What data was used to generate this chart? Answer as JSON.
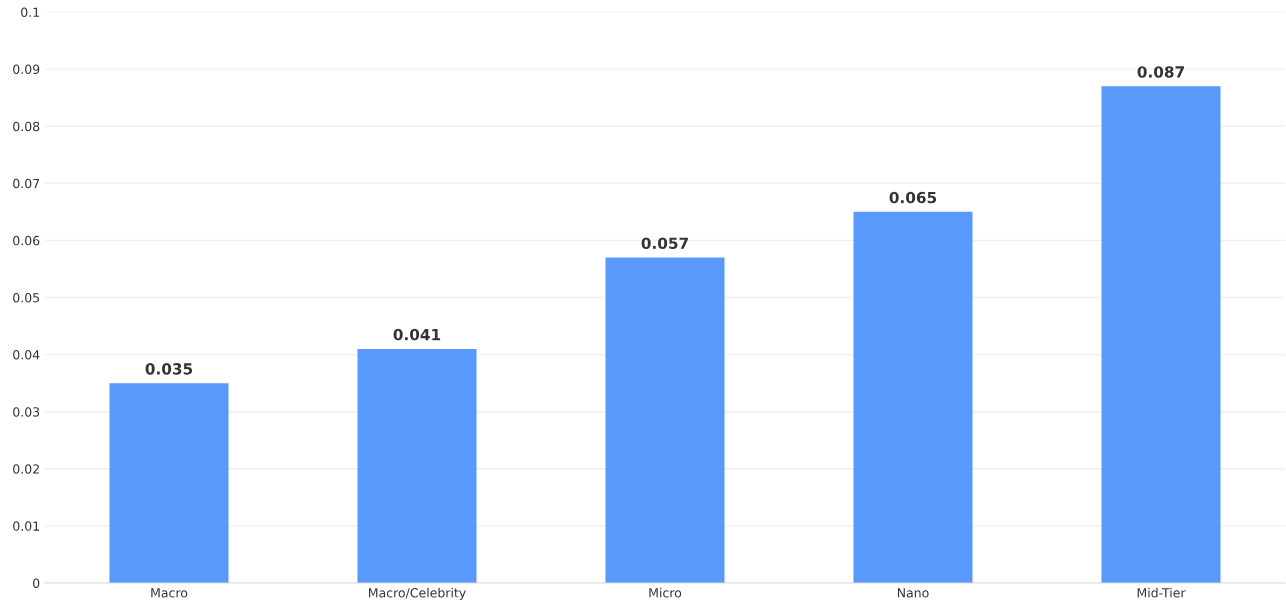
{
  "chart_data": {
    "type": "bar",
    "categories": [
      "Macro",
      "Macro/Celebrity",
      "Micro",
      "Nano",
      "Mid-Tier"
    ],
    "values": [
      0.035,
      0.041,
      0.057,
      0.065,
      0.087
    ],
    "color": "#5899fb",
    "ylim": [
      0,
      0.1
    ],
    "yticks": [
      0,
      0.01,
      0.02,
      0.03,
      0.04,
      0.05,
      0.06,
      0.07,
      0.08,
      0.09,
      0.1
    ],
    "grid": "y",
    "data_labels": true
  }
}
